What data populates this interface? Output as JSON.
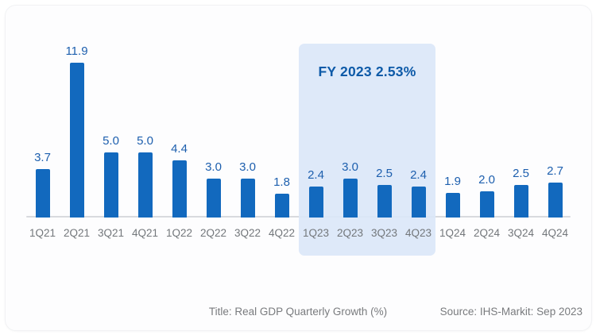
{
  "chart_data": {
    "type": "bar",
    "categories": [
      "1Q21",
      "2Q21",
      "3Q21",
      "4Q21",
      "1Q22",
      "2Q22",
      "3Q22",
      "4Q22",
      "1Q23",
      "2Q23",
      "3Q23",
      "4Q23",
      "1Q24",
      "2Q24",
      "3Q24",
      "4Q24"
    ],
    "values": [
      3.7,
      11.9,
      5.0,
      5.0,
      4.4,
      3.0,
      3.0,
      1.8,
      2.4,
      3.0,
      2.5,
      2.4,
      1.9,
      2.0,
      2.5,
      2.7
    ],
    "value_label_format": "one_decimal",
    "title": "Title: Real GDP Quarterly Growth (%)",
    "xlabel": "",
    "ylabel": "",
    "ylim": [
      0,
      12.5
    ],
    "grid": false,
    "legend": "none",
    "annotation": {
      "label": "FY 2023 2.53%",
      "covers": [
        "1Q23",
        "2Q23",
        "3Q23",
        "4Q23"
      ]
    },
    "colors": {
      "bar": "#1269be",
      "value_label": "#1d5fae",
      "tick_label": "#73777b",
      "axis_line": "#d8dade",
      "annotation_bg": "rgba(218,231,248,0.9)",
      "annotation_text": "#0d5aa8",
      "footer_text": "#797b7e"
    }
  },
  "footer": {
    "title": "Title: Real GDP Quarterly Growth (%)",
    "source": "Source: IHS-Markit: Sep 2023"
  }
}
